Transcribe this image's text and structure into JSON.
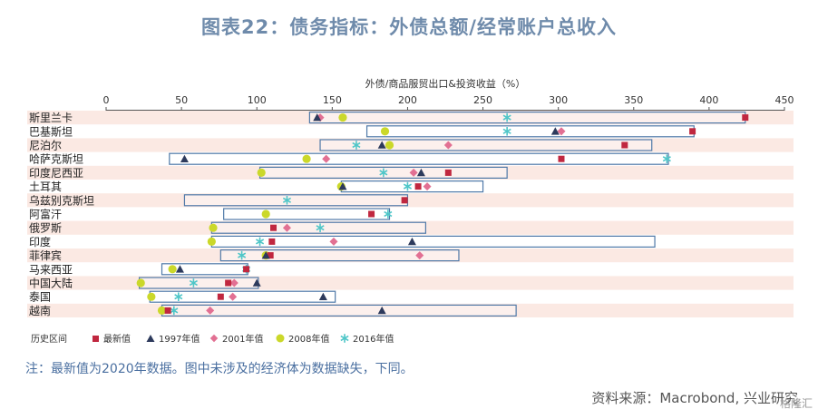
{
  "title": "图表22：债务指标：外债总额/经常账户总收入",
  "footnote": "注：最新值为2020年数据。图中未涉及的经济体为数据缺失，下同。",
  "source": "资料来源：Macrobond, 兴业研究",
  "watermark": "格隆汇",
  "colors": {
    "range_box": "#4f79a8",
    "latest": "#c0273f",
    "y1997": "#2d3a5c",
    "y2001": "#e27093",
    "y2008": "#cbd82a",
    "y2016": "#4fc6c8",
    "stripe": "#fbe9e3"
  },
  "chart_data": {
    "type": "range-dot",
    "xlabel": "外债/商品服贸出口&投资收益（%）",
    "xlim": [
      0,
      450
    ],
    "xticks": [
      0,
      50,
      100,
      150,
      200,
      250,
      300,
      350,
      400,
      450
    ],
    "legend_position": "bottom-left",
    "legend": [
      {
        "key": "range",
        "label": "历史区间"
      },
      {
        "key": "latest",
        "label": "最新值"
      },
      {
        "key": "y1997",
        "label": "1997年值"
      },
      {
        "key": "y2001",
        "label": "2001年值"
      },
      {
        "key": "y2008",
        "label": "2008年值"
      },
      {
        "key": "y2016",
        "label": "2016年值"
      }
    ],
    "rows": [
      {
        "country": "斯里兰卡",
        "range": [
          135,
          424
        ],
        "latest": 424,
        "y1997": 140,
        "y2001": 142,
        "y2008": 157,
        "y2016": 266
      },
      {
        "country": "巴基斯坦",
        "range": [
          173,
          390
        ],
        "latest": 389,
        "y1997": 298,
        "y2001": 302,
        "y2008": 185,
        "y2016": 266
      },
      {
        "country": "尼泊尔",
        "range": [
          142,
          362
        ],
        "latest": 344,
        "y1997": 183,
        "y2001": 227,
        "y2008": 188,
        "y2016": 166
      },
      {
        "country": "哈萨克斯坦",
        "range": [
          42,
          373
        ],
        "latest": 302,
        "y1997": 52,
        "y2001": 146,
        "y2008": 133,
        "y2016": 372
      },
      {
        "country": "印度尼西亚",
        "range": [
          102,
          266
        ],
        "latest": 227,
        "y1997": 209,
        "y2001": 204,
        "y2008": 103,
        "y2016": 184
      },
      {
        "country": "土耳其",
        "range": [
          156,
          250
        ],
        "latest": 207,
        "y1997": 157,
        "y2001": 213,
        "y2008": 156,
        "y2016": 200
      },
      {
        "country": "乌兹别克斯坦",
        "range": [
          52,
          200
        ],
        "latest": 198,
        "y1997": null,
        "y2001": null,
        "y2008": null,
        "y2016": 120
      },
      {
        "country": "阿富汗",
        "range": [
          78,
          188
        ],
        "latest": 176,
        "y1997": null,
        "y2001": null,
        "y2008": 106,
        "y2016": 187
      },
      {
        "country": "俄罗斯",
        "range": [
          70,
          212
        ],
        "latest": 111,
        "y1997": null,
        "y2001": 120,
        "y2008": 71,
        "y2016": 142
      },
      {
        "country": "印度",
        "range": [
          70,
          364
        ],
        "latest": 110,
        "y1997": 203,
        "y2001": 151,
        "y2008": 70,
        "y2016": 102
      },
      {
        "country": "菲律宾",
        "range": [
          76,
          234
        ],
        "latest": 109,
        "y1997": 106,
        "y2001": 208,
        "y2008": 106,
        "y2016": 90
      },
      {
        "country": "马来西亚",
        "range": [
          37,
          94
        ],
        "latest": 93,
        "y1997": 49,
        "y2001": null,
        "y2008": 44,
        "y2016": 93
      },
      {
        "country": "中国大陆",
        "range": [
          22,
          101
        ],
        "latest": 81,
        "y1997": 100,
        "y2001": 85,
        "y2008": 23,
        "y2016": 58
      },
      {
        "country": "泰国",
        "range": [
          29,
          152
        ],
        "latest": 76,
        "y1997": 144,
        "y2001": 84,
        "y2008": 30,
        "y2016": 48
      },
      {
        "country": "越南",
        "range": [
          37,
          272
        ],
        "latest": 41,
        "y1997": 183,
        "y2001": 69,
        "y2008": 37,
        "y2016": 45
      }
    ]
  }
}
